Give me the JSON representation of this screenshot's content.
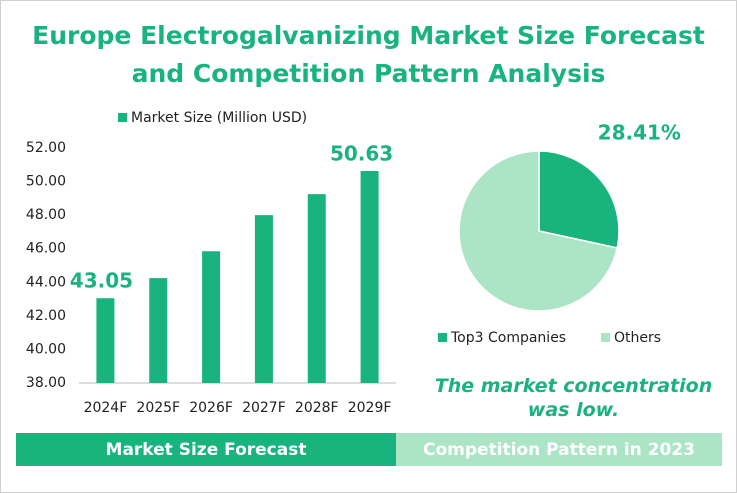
{
  "title": "Europe Electrogalvanizing Market Size Forecast\nand Competition Pattern Analysis",
  "chart_data": [
    {
      "type": "bar",
      "categories": [
        "2024F",
        "2025F",
        "2026F",
        "2027F",
        "2028F",
        "2029F"
      ],
      "series": [
        {
          "name": "Market Size (Million USD)",
          "color": "#19b37d",
          "values": [
            43.05,
            44.25,
            45.85,
            48.0,
            49.25,
            50.63
          ]
        }
      ],
      "ylim": [
        38,
        52
      ],
      "yticks": [
        {
          "value": 38,
          "label": "38.00"
        },
        {
          "value": 40,
          "label": "40.00"
        },
        {
          "value": 42,
          "label": "42.00"
        },
        {
          "value": 44,
          "label": "44.00"
        },
        {
          "value": 46,
          "label": "46.00"
        },
        {
          "value": 48,
          "label": "48.00"
        },
        {
          "value": 50,
          "label": "50.00"
        },
        {
          "value": 52,
          "label": "52.00"
        }
      ],
      "grid": false,
      "data_labels": "ends",
      "legend": "top"
    },
    {
      "type": "pie",
      "categories": [
        "Top3 Companies",
        "Others"
      ],
      "values": [
        28.41,
        71.59
      ],
      "value_labels": [
        "28.41%",
        null
      ],
      "colors": [
        "#19b37d",
        "#ace5c6"
      ],
      "legend": "bottom"
    }
  ],
  "annotation": "The market concentration was low.",
  "footer": [
    "Market Size Forecast",
    "Competition Pattern in 2023"
  ]
}
